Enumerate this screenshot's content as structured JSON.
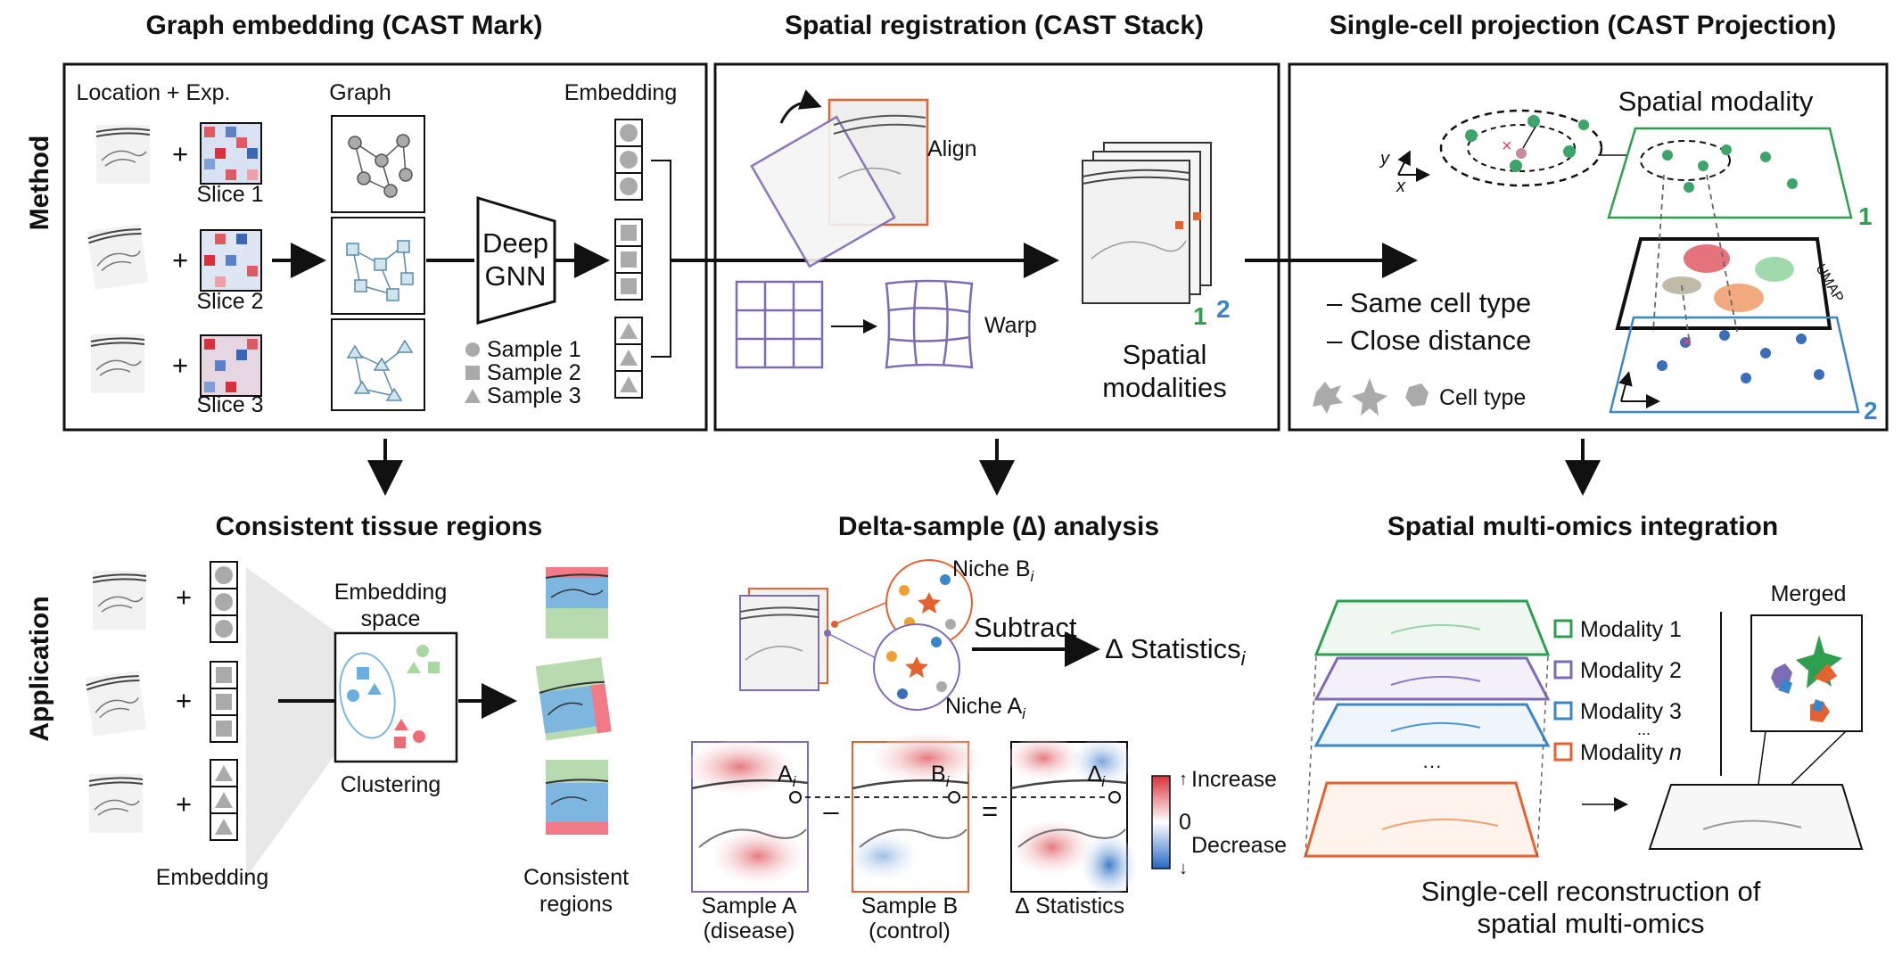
{
  "titles": {
    "mark": "Graph embedding (CAST Mark)",
    "stack": "Spatial registration (CAST Stack)",
    "projection": "Single-cell projection  (CAST Projection)",
    "regions": "Consistent tissue regions",
    "delta": "Delta-sample (∆) analysis",
    "multiomics": "Spatial multi-omics integration"
  },
  "row_labels": {
    "method": "Method",
    "application": "Application"
  },
  "mark": {
    "location_exp": "Location + Exp.",
    "graph": "Graph",
    "embedding": "Embedding",
    "slices": [
      "Slice 1",
      "Slice 2",
      "Slice 3"
    ],
    "gnn": [
      "Deep",
      "GNN"
    ],
    "samples": [
      "Sample 1",
      "Sample 2",
      "Sample 3"
    ]
  },
  "stack": {
    "align": "Align",
    "warp": "Warp",
    "modalities": [
      "Spatial",
      "modalities"
    ],
    "num1": "1",
    "num2": "2"
  },
  "projection": {
    "spatial_modality": "Spatial modality",
    "umap": "UMAP",
    "criteria": [
      "– Same cell type",
      "– Close distance"
    ],
    "cell_type": "Cell type",
    "axis_x": "x",
    "axis_y": "y",
    "num1": "1",
    "num2": "2"
  },
  "regions": {
    "embedding_space": [
      "Embedding",
      "space"
    ],
    "clustering": "Clustering",
    "embedding": "Embedding",
    "consistent": [
      "Consistent",
      "regions"
    ]
  },
  "delta": {
    "niche_b": "Niche B",
    "niche_a": "Niche A",
    "subscript_i": "i",
    "subtract": "Subtract",
    "stat": "∆ Statistics",
    "point_a": "A",
    "point_b": "B",
    "point_d": "∆",
    "minus": "–",
    "equals": "=",
    "increase": "Increase",
    "zero": "0",
    "decrease": "Decrease",
    "sample_a": [
      "Sample A",
      "(disease)"
    ],
    "sample_b": [
      "Sample B",
      "(control)"
    ],
    "delta_stats": "∆ Statistics"
  },
  "multiomics": {
    "merged": "Merged",
    "modalities": [
      "Modality 1",
      "Modality 2",
      "Modality 3",
      "Modality "
    ],
    "modality_n": "n",
    "dots": "...",
    "ellipsis": "···",
    "caption": [
      "Single-cell reconstruction of",
      "spatial multi-omics"
    ],
    "colors": [
      "#2e9e4f",
      "#7e6bb5",
      "#3a86c8",
      "#e3622f"
    ]
  }
}
